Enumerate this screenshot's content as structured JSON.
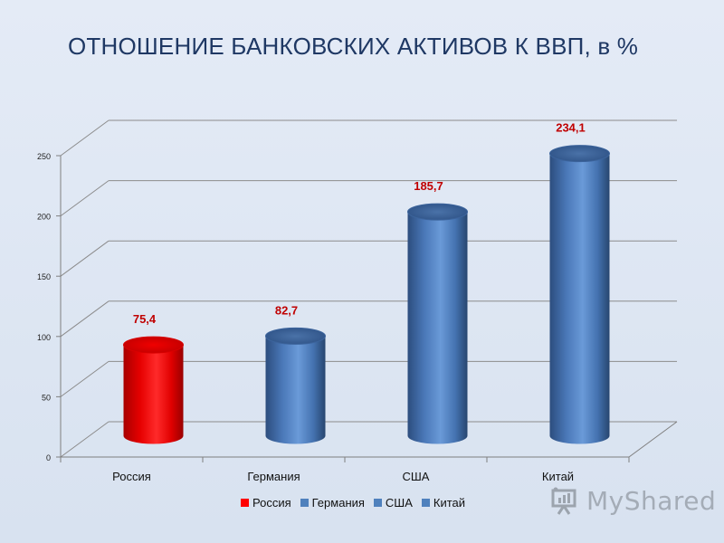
{
  "slide": {
    "title": "ОТНОШЕНИЕ БАНКОВСКИХ АКТИВОВ К ВВП, в %"
  },
  "chart_data": {
    "type": "bar",
    "title": "ОТНОШЕНИЕ БАНКОВСКИХ АКТИВОВ К ВВП, в %",
    "xlabel": "",
    "ylabel": "",
    "categories": [
      "Россия",
      "Германия",
      "США",
      "Китай"
    ],
    "values": [
      75.4,
      82.7,
      185.7,
      234.1
    ],
    "value_labels": [
      "75,4",
      "82,7",
      "185,7",
      "234,1"
    ],
    "colors": [
      "#ff0000",
      "#4f81bd",
      "#4f81bd",
      "#4f81bd"
    ],
    "label_color": "#c00000",
    "ylim": [
      0,
      250
    ],
    "yticks": [
      0,
      50,
      100,
      150,
      200,
      250
    ],
    "ytick_labels": [
      "0",
      "50",
      "100",
      "150",
      "200",
      "250"
    ],
    "grid": true,
    "style": "3d-cylinder",
    "legend": {
      "position": "bottom",
      "entries": [
        "Россия",
        "Германия",
        "США",
        "Китай"
      ]
    }
  },
  "watermark": {
    "text": "MyShared",
    "icon": "presentation-board-icon"
  }
}
